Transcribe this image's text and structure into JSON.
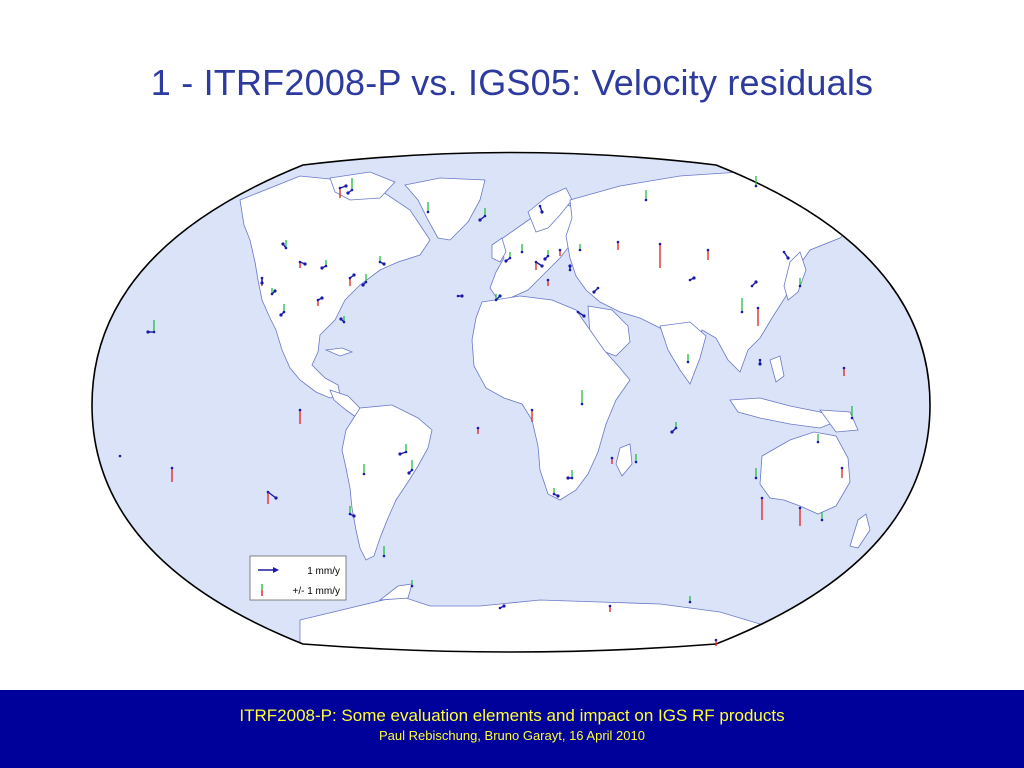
{
  "slide": {
    "title": "1 - ITRF2008-P vs. IGS05: Velocity residuals"
  },
  "map": {
    "projection": "Winkel-tripel world map",
    "ocean_color": "#dbe3f8",
    "land_color": "#ffffff",
    "coast_color": "#6a78c8",
    "horizontal_arrow_color": "#1a1aa8",
    "vertical_up_color": "#22bb44",
    "vertical_down_color": "#e02020",
    "legend": {
      "horizontal_label": "1 mm/y",
      "vertical_label": "+/- 1 mm/y",
      "horizontal_icon": "blue-arrow-icon",
      "vertical_icon": "green-red-bar-icon"
    }
  },
  "footer": {
    "line1": "ITRF2008-P: Some evaluation elements and impact on IGS RF products",
    "line2": "Paul Rebischung, Bruno Garayt, 16 April 2010",
    "background": "#00009a",
    "text_color": "#ffff33"
  }
}
